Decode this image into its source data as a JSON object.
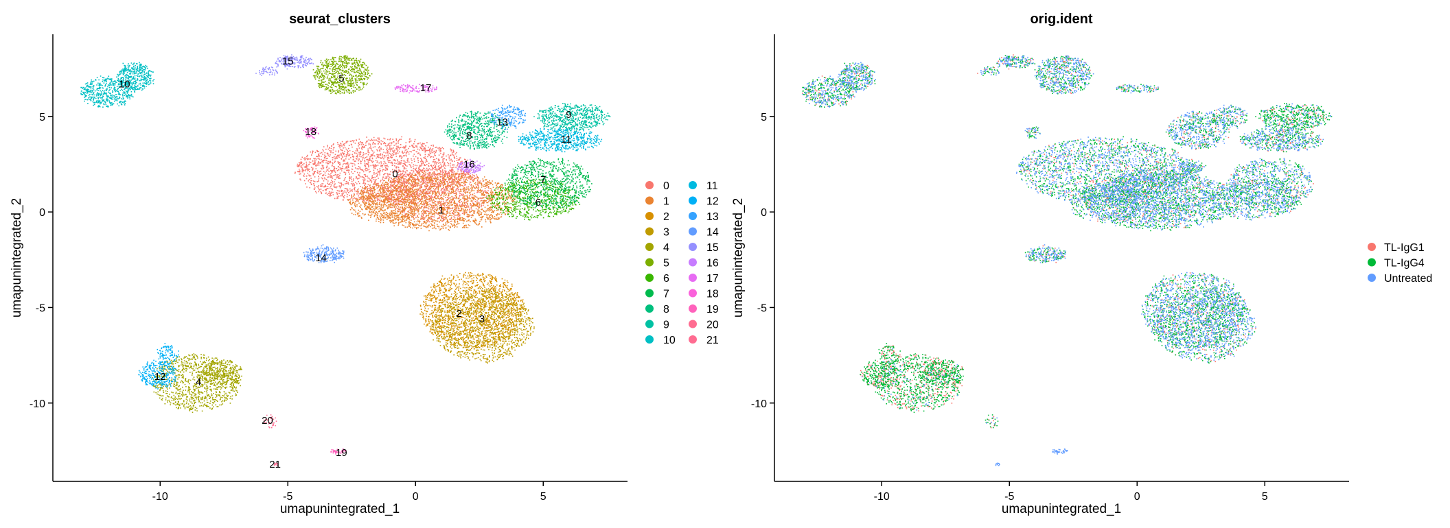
{
  "chart_data": [
    {
      "type": "scatter",
      "title": "seurat_clusters",
      "xlabel": "umapunintegrated_1",
      "ylabel": "umapunintegrated_2",
      "xlim": [
        -14.2,
        8.3
      ],
      "ylim": [
        -14.1,
        9.3
      ],
      "xticks": [
        "-10",
        "-5",
        "0",
        "5"
      ],
      "yticks": [
        "-10",
        "-5",
        "0",
        "5"
      ],
      "grid": false,
      "legend": "right",
      "legend_entries": [
        "0",
        "1",
        "2",
        "3",
        "4",
        "5",
        "6",
        "7",
        "8",
        "9",
        "10",
        "11",
        "12",
        "13",
        "14",
        "15",
        "16",
        "17",
        "18",
        "19",
        "20",
        "21"
      ],
      "series": [
        {
          "name": "0",
          "color": "#F8766D",
          "label_pos": [
            -0.8,
            2.0
          ],
          "blobs": [
            [
              -1.3,
              2.2,
              3.4,
              1.7,
              2200
            ],
            [
              0.8,
              1.0,
              2.0,
              1.5,
              900
            ]
          ]
        },
        {
          "name": "1",
          "color": "#EA8331",
          "label_pos": [
            1.0,
            0.1
          ],
          "blobs": [
            [
              0.9,
              0.6,
              3.0,
              1.5,
              1800
            ],
            [
              -1.2,
              0.5,
              1.5,
              1.0,
              500
            ]
          ]
        },
        {
          "name": "2",
          "color": "#D89000",
          "label_pos": [
            1.7,
            -5.3
          ],
          "blobs": [
            [
              2.2,
              -5.1,
              2.0,
              2.0,
              1500
            ]
          ]
        },
        {
          "name": "3",
          "color": "#C09B00",
          "label_pos": [
            2.6,
            -5.6
          ],
          "blobs": [
            [
              2.6,
              -5.9,
              2.0,
              1.9,
              1400
            ]
          ]
        },
        {
          "name": "4",
          "color": "#A3A500",
          "label_pos": [
            -8.5,
            -8.9
          ],
          "blobs": [
            [
              -8.6,
              -8.9,
              1.7,
              1.5,
              1000
            ],
            [
              -7.6,
              -8.4,
              0.8,
              0.7,
              300
            ]
          ]
        },
        {
          "name": "5",
          "color": "#7CAE00",
          "label_pos": [
            -2.9,
            7.0
          ],
          "blobs": [
            [
              -2.9,
              7.2,
              1.1,
              1.0,
              700
            ]
          ]
        },
        {
          "name": "6",
          "color": "#39B600",
          "label_pos": [
            4.8,
            0.5
          ],
          "blobs": [
            [
              4.6,
              0.7,
              1.8,
              1.0,
              700
            ]
          ]
        },
        {
          "name": "7",
          "color": "#00BB4E",
          "label_pos": [
            5.0,
            1.7
          ],
          "blobs": [
            [
              5.2,
              1.5,
              1.7,
              1.3,
              800
            ]
          ]
        },
        {
          "name": "8",
          "color": "#00BF7D",
          "label_pos": [
            2.1,
            4.0
          ],
          "blobs": [
            [
              2.4,
              4.3,
              1.2,
              1.0,
              600
            ]
          ]
        },
        {
          "name": "9",
          "color": "#00C1A3",
          "label_pos": [
            6.0,
            5.1
          ],
          "blobs": [
            [
              6.1,
              5.0,
              1.4,
              0.7,
              600
            ]
          ]
        },
        {
          "name": "10",
          "color": "#00BFC4",
          "label_pos": [
            -11.4,
            6.7
          ],
          "blobs": [
            [
              -12.1,
              6.3,
              1.0,
              0.8,
              500
            ],
            [
              -11.0,
              7.1,
              0.7,
              0.7,
              400
            ]
          ]
        },
        {
          "name": "11",
          "color": "#00BAE0",
          "label_pos": [
            5.9,
            3.8
          ],
          "blobs": [
            [
              5.6,
              3.8,
              1.6,
              0.6,
              600
            ]
          ]
        },
        {
          "name": "12",
          "color": "#00B0F6",
          "label_pos": [
            -10.0,
            -8.6
          ],
          "blobs": [
            [
              -10.1,
              -8.5,
              0.7,
              0.7,
              300
            ],
            [
              -9.7,
              -7.4,
              0.4,
              0.5,
              100
            ]
          ]
        },
        {
          "name": "13",
          "color": "#35A2FF",
          "label_pos": [
            3.4,
            4.7
          ],
          "blobs": [
            [
              3.6,
              5.0,
              0.7,
              0.6,
              200
            ]
          ]
        },
        {
          "name": "14",
          "color": "#619CFF",
          "label_pos": [
            -3.7,
            -2.4
          ],
          "blobs": [
            [
              -3.6,
              -2.2,
              0.8,
              0.4,
              250
            ]
          ]
        },
        {
          "name": "15",
          "color": "#9590FF",
          "label_pos": [
            -5.0,
            7.9
          ],
          "blobs": [
            [
              -4.8,
              7.9,
              0.7,
              0.3,
              200
            ],
            [
              -5.8,
              7.4,
              0.4,
              0.2,
              50
            ]
          ]
        },
        {
          "name": "16",
          "color": "#C77CFF",
          "label_pos": [
            2.1,
            2.5
          ],
          "blobs": [
            [
              2.1,
              2.4,
              0.5,
              0.3,
              150
            ]
          ]
        },
        {
          "name": "17",
          "color": "#E76BF3",
          "label_pos": [
            0.4,
            6.5
          ],
          "blobs": [
            [
              0.0,
              6.5,
              0.8,
              0.2,
              120
            ]
          ]
        },
        {
          "name": "18",
          "color": "#FA62DB",
          "label_pos": [
            -4.1,
            4.2
          ],
          "blobs": [
            [
              -4.1,
              4.2,
              0.25,
              0.3,
              60
            ]
          ]
        },
        {
          "name": "19",
          "color": "#FF62BC",
          "label_pos": [
            -2.9,
            -12.6
          ],
          "blobs": [
            [
              -3.0,
              -12.5,
              0.3,
              0.1,
              40
            ]
          ]
        },
        {
          "name": "20",
          "color": "#FF6C91",
          "label_pos": [
            -5.8,
            -10.9
          ],
          "blobs": [
            [
              -5.7,
              -11.0,
              0.2,
              0.4,
              30
            ]
          ]
        },
        {
          "name": "21",
          "color": "#FF6C91",
          "label_pos": [
            -5.5,
            -13.2
          ],
          "blobs": [
            [
              -5.5,
              -13.2,
              0.1,
              0.1,
              10
            ]
          ]
        }
      ]
    },
    {
      "type": "scatter",
      "title": "orig.ident",
      "xlabel": "umapunintegrated_1",
      "ylabel": "umapunintegrated_2",
      "xlim": [
        -14.2,
        8.3
      ],
      "ylim": [
        -14.1,
        9.3
      ],
      "xticks": [
        "-10",
        "-5",
        "0",
        "5"
      ],
      "yticks": [
        "-10",
        "-5",
        "0",
        "5"
      ],
      "grid": false,
      "legend": "right",
      "legend_entries": [
        "TL-IgG1",
        "TL-IgG4",
        "Untreated"
      ],
      "series": [
        {
          "name": "TL-IgG1",
          "color": "#F8766D"
        },
        {
          "name": "TL-IgG4",
          "color": "#00BA38"
        },
        {
          "name": "Untreated",
          "color": "#619CFF"
        }
      ],
      "mixing": {
        "default": [
          0.12,
          0.4,
          0.48
        ],
        "clusters_4_12_20": [
          0.3,
          0.65,
          0.05
        ],
        "clusters_19_21": [
          0.0,
          0.0,
          1.0
        ],
        "cluster_9": [
          0.1,
          0.7,
          0.2
        ]
      }
    }
  ]
}
